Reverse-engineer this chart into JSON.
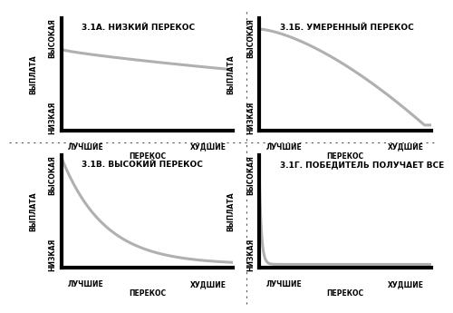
{
  "titles": [
    "3.1А. НИЗКИЙ ПЕРЕКОС",
    "3.1Б. УМЕРЕННЫЙ ПЕРЕКОС",
    "3.1В. ВЫСОКИЙ ПЕРЕКОС",
    "3.1Г. ПОБЕДИТЕЛЬ ПОЛУЧАЕТ ВСЕ"
  ],
  "ylabel_top": "ВЫСОКАЯ",
  "ylabel_mid": "ВЫПЛАТА",
  "ylabel_bot": "НИЗКАЯ",
  "xlabel_left": "ЛУЧШИЕ",
  "xlabel_mid": "ПЕРЕКОС",
  "xlabel_right": "ХУДШИЕ",
  "curve_color": "#b0b0b0",
  "curve_linewidth": 2.2,
  "axis_color": "#000000",
  "axis_linewidth": 3.0,
  "bg_color": "#ffffff",
  "title_fontsize": 6.5,
  "label_fontsize": 5.5,
  "separator_color": "#555555",
  "separator_style": "dotted"
}
